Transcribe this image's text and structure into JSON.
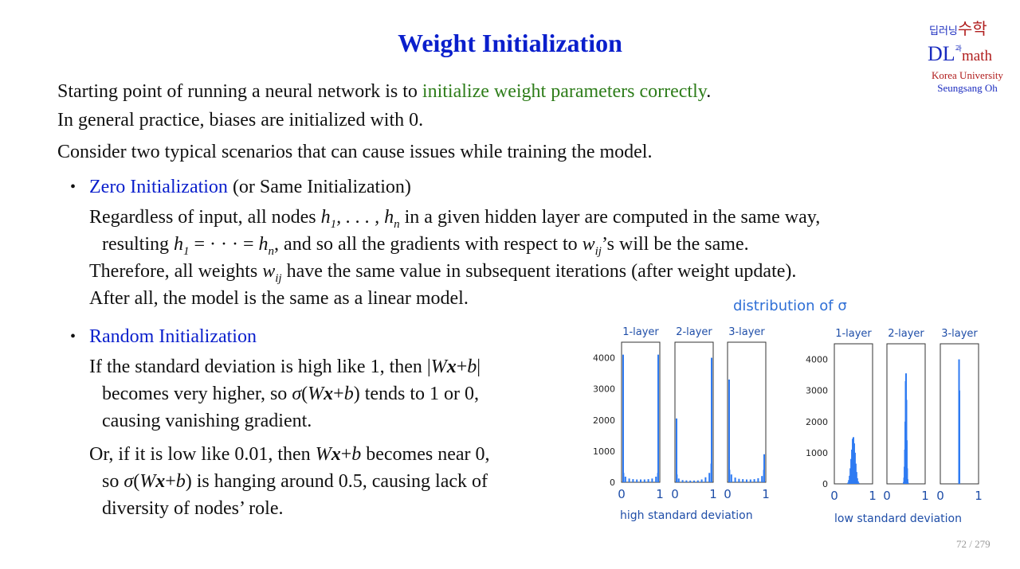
{
  "title": "Weight Initialization",
  "logo": {
    "top_left": "딥러닝",
    "top_conj": "과",
    "top_right": "수학",
    "dl": "DL",
    "math": "math",
    "university": "Korea University",
    "author": "Seungsang Oh"
  },
  "intro": {
    "line1_prefix": "Starting point of running a neural network is to ",
    "line1_highlight": "initialize weight parameters correctly",
    "line1_suffix": ".",
    "line2": "In general practice, biases are initialized with 0.",
    "line3": "Consider two typical scenarios that can cause issues while training the model."
  },
  "zero": {
    "heading": "Zero Initialization",
    "heading_note": " (or Same Initialization)",
    "l1a": "Regardless of input, all nodes ",
    "l1b": " in a given hidden layer are computed in the same way,",
    "l2a": "resulting ",
    "l2b": ", and so all the gradients with respect to ",
    "l2c": "’s will be the same.",
    "l3a": "Therefore, all weights ",
    "l3b": " have the same value in subsequent iterations (after weight update).",
    "l4": "After all, the model is the same as a linear model."
  },
  "random": {
    "heading": "Random Initialization",
    "l1": "If the standard deviation is high like 1, then |",
    "l1end": "|",
    "l2a": "becomes very higher,  so ",
    "l2b": " tends to 1 or 0,",
    "l3": "causing vanishing gradient.",
    "l4a": "Or, if it is low like 0.01, then ",
    "l4b": " becomes near 0,",
    "l5a": "so ",
    "l5b": " is hanging around 0.5, causing lack of",
    "l6": "diversity of nodes’ role."
  },
  "figure": {
    "title": "distribution of σ",
    "high_label": "high standard deviation",
    "low_label": "low standard deviation"
  },
  "chart_data": [
    {
      "type": "bar",
      "title": "1-layer",
      "group": "high standard deviation",
      "x": [
        0.0,
        0.025,
        0.05,
        0.1,
        0.2,
        0.3,
        0.4,
        0.5,
        0.6,
        0.7,
        0.8,
        0.9,
        0.95,
        0.975,
        1.0
      ],
      "values": [
        4100,
        800,
        300,
        180,
        120,
        100,
        90,
        90,
        90,
        100,
        120,
        180,
        300,
        800,
        4100
      ],
      "yticks": [
        0,
        1000,
        2000,
        3000,
        4000
      ],
      "xticks": [
        "0",
        "1"
      ],
      "ylim": [
        0,
        4500
      ],
      "xlim": [
        0,
        1
      ]
    },
    {
      "type": "bar",
      "title": "2-layer",
      "group": "high standard deviation",
      "x": [
        0.0,
        0.025,
        0.05,
        0.1,
        0.2,
        0.3,
        0.4,
        0.5,
        0.6,
        0.7,
        0.8,
        0.9,
        0.95,
        0.975,
        1.0
      ],
      "values": [
        2050,
        750,
        250,
        120,
        70,
        60,
        55,
        55,
        60,
        90,
        160,
        300,
        600,
        1200,
        4000
      ],
      "yticks": [
        0,
        1000,
        2000,
        3000,
        4000
      ],
      "xticks": [
        "0",
        "1"
      ],
      "ylim": [
        0,
        4500
      ],
      "xlim": [
        0,
        1
      ]
    },
    {
      "type": "bar",
      "title": "3-layer",
      "group": "high standard deviation",
      "x": [
        0.0,
        0.025,
        0.05,
        0.1,
        0.2,
        0.3,
        0.4,
        0.5,
        0.6,
        0.7,
        0.8,
        0.9,
        0.95,
        0.975,
        1.0
      ],
      "values": [
        3300,
        800,
        400,
        250,
        150,
        110,
        100,
        90,
        90,
        100,
        130,
        200,
        400,
        700,
        900
      ],
      "yticks": [
        0,
        1000,
        2000,
        3000,
        4000
      ],
      "xticks": [
        "0",
        "1"
      ],
      "ylim": [
        0,
        4500
      ],
      "xlim": [
        0,
        1
      ]
    },
    {
      "type": "bar",
      "title": "1-layer",
      "group": "low standard deviation",
      "x": [
        0.36,
        0.38,
        0.4,
        0.42,
        0.44,
        0.46,
        0.48,
        0.5,
        0.52,
        0.54,
        0.56,
        0.58,
        0.6,
        0.62,
        0.64
      ],
      "values": [
        40,
        120,
        260,
        500,
        800,
        1100,
        1450,
        1500,
        1300,
        1000,
        650,
        380,
        180,
        80,
        30
      ],
      "yticks": [
        0,
        1000,
        2000,
        3000,
        4000
      ],
      "xticks": [
        "0",
        "1"
      ],
      "ylim": [
        0,
        4500
      ],
      "xlim": [
        0,
        1
      ]
    },
    {
      "type": "bar",
      "title": "2-layer",
      "group": "low standard deviation",
      "x": [
        0.44,
        0.45,
        0.46,
        0.47,
        0.48,
        0.49,
        0.5,
        0.51,
        0.52,
        0.53,
        0.54,
        0.55
      ],
      "values": [
        60,
        200,
        550,
        1100,
        2000,
        3300,
        3550,
        2700,
        1400,
        500,
        150,
        40
      ],
      "yticks": [
        0,
        1000,
        2000,
        3000,
        4000
      ],
      "xticks": [
        "0",
        "1"
      ],
      "ylim": [
        0,
        4500
      ],
      "xlim": [
        0,
        1
      ]
    },
    {
      "type": "bar",
      "title": "3-layer",
      "group": "low standard deviation",
      "x": [
        0.49,
        0.5
      ],
      "values": [
        4000,
        3000
      ],
      "yticks": [],
      "xticks": [
        "0",
        "1"
      ],
      "ylim": [
        0,
        4500
      ],
      "xlim": [
        0,
        1
      ]
    }
  ],
  "page": {
    "current": "72",
    "sep": " / ",
    "total": "279"
  },
  "colors": {
    "title": "#0a1fcc",
    "highlight": "#2e7d1a",
    "heading": "#0a1fcc",
    "bars": "#2f7bf2",
    "figure_text": "#2f6fd6"
  }
}
